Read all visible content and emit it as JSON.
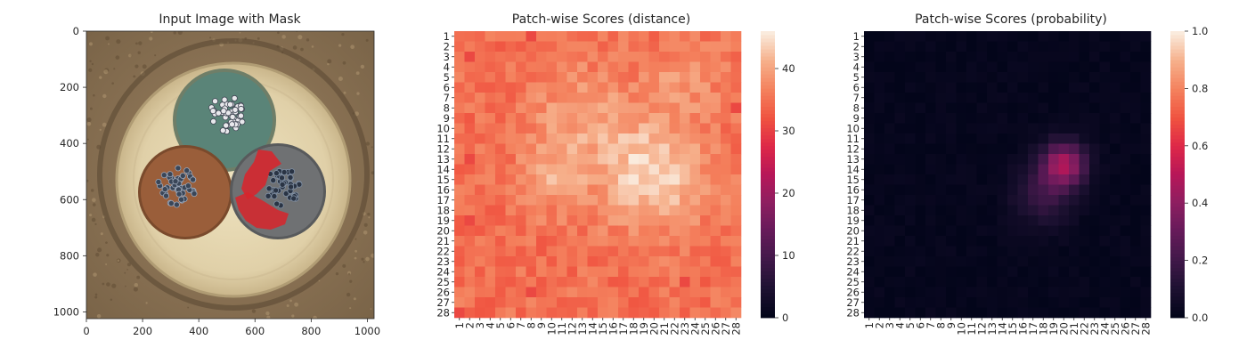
{
  "chart_data": [
    {
      "type": "image",
      "title": "Input Image with Mask",
      "xticks": [
        0,
        200,
        400,
        600,
        800,
        1000
      ],
      "yticks": [
        0,
        200,
        400,
        600,
        800,
        1000
      ],
      "xlim": [
        0,
        1024
      ],
      "ylim": [
        1024,
        0
      ],
      "image_description": "Cross-section of a three-core cable: green core (top), brown core (lower-left), grey core (lower-right) with a red anomaly mask on the grey core",
      "colors": {
        "background": "#8c7454",
        "sheath": "#e2d4b0",
        "core_top": "#5a8478",
        "core_left": "#9a5e3a",
        "core_right": "#6b6e70",
        "mask": "#d8242c",
        "wires_light": "#e8e8ec",
        "wires_dark": "#2a3444"
      }
    },
    {
      "type": "heatmap",
      "title": "Patch-wise Scores (distance)",
      "rows": 28,
      "cols": 28,
      "row_labels": [
        "1",
        "2",
        "3",
        "4",
        "5",
        "6",
        "7",
        "8",
        "9",
        "10",
        "11",
        "12",
        "13",
        "14",
        "15",
        "16",
        "17",
        "18",
        "19",
        "20",
        "21",
        "22",
        "23",
        "24",
        "25",
        "26",
        "27",
        "28"
      ],
      "col_labels": [
        "1",
        "2",
        "3",
        "4",
        "5",
        "6",
        "7",
        "8",
        "9",
        "10",
        "11",
        "12",
        "13",
        "14",
        "15",
        "16",
        "17",
        "18",
        "19",
        "20",
        "21",
        "22",
        "23",
        "24",
        "25",
        "26",
        "27",
        "28"
      ],
      "colorbar": {
        "ticks": [
          0,
          10,
          20,
          30,
          40
        ],
        "vmin": 0,
        "vmax": 46,
        "colormap": "rocket"
      },
      "base_value": 35,
      "hotspots": [
        {
          "row": 14.5,
          "col": 20,
          "peak": 45,
          "sigma": 3.6
        },
        {
          "row": 9,
          "col": 13,
          "peak": 40,
          "sigma": 3.5
        },
        {
          "row": 15,
          "col": 10,
          "peak": 40,
          "sigma": 2.2
        },
        {
          "row": 5,
          "col": 23,
          "peak": 39,
          "sigma": 2.5
        }
      ],
      "low_spots": [
        {
          "row": 3,
          "col": 2,
          "value": 31
        },
        {
          "row": 13,
          "col": 2,
          "value": 31
        },
        {
          "row": 19,
          "col": 2,
          "value": 31
        },
        {
          "row": 28,
          "col": 1,
          "value": 31
        },
        {
          "row": 1,
          "col": 8,
          "value": 31
        },
        {
          "row": 26,
          "col": 8,
          "value": 31
        },
        {
          "row": 25,
          "col": 23,
          "value": 31
        },
        {
          "row": 8,
          "col": 28,
          "value": 31
        }
      ]
    },
    {
      "type": "heatmap",
      "title": "Patch-wise Scores (probability)",
      "rows": 28,
      "cols": 28,
      "row_labels": [
        "1",
        "2",
        "3",
        "4",
        "5",
        "6",
        "7",
        "8",
        "9",
        "10",
        "11",
        "12",
        "13",
        "14",
        "15",
        "16",
        "17",
        "18",
        "19",
        "20",
        "21",
        "22",
        "23",
        "24",
        "25",
        "26",
        "27",
        "28"
      ],
      "col_labels": [
        "1",
        "2",
        "3",
        "4",
        "5",
        "6",
        "7",
        "8",
        "9",
        "10",
        "11",
        "12",
        "13",
        "14",
        "15",
        "16",
        "17",
        "18",
        "19",
        "20",
        "21",
        "22",
        "23",
        "24",
        "25",
        "26",
        "27",
        "28"
      ],
      "colorbar": {
        "ticks": [
          0.0,
          0.2,
          0.4,
          0.6,
          0.8,
          1.0
        ],
        "tick_labels": [
          "0.0",
          "0.2",
          "0.4",
          "0.6",
          "0.8",
          "1.0"
        ],
        "vmin": 0,
        "vmax": 1,
        "colormap": "rocket"
      },
      "base_value": 0.01,
      "hotspots": [
        {
          "row": 13.5,
          "col": 20,
          "peak": 0.45,
          "sigma": 1.5
        },
        {
          "row": 16.5,
          "col": 18,
          "peak": 0.18,
          "sigma": 2.0
        }
      ]
    }
  ]
}
